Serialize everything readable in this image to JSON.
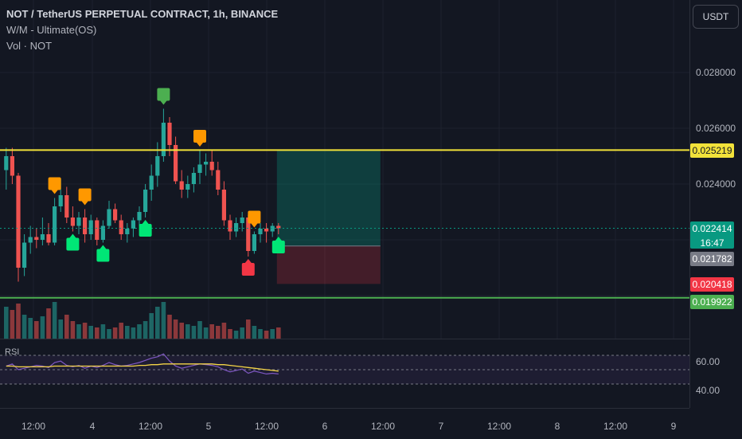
{
  "legend": {
    "symbol": "NOT / TetherUS PERPETUAL CONTRACT, 1h, BINANCE",
    "indicator1": "W/M - Ultimate(OS)",
    "indicator2": "Vol · NOT"
  },
  "currency": "USDT",
  "price_axis": [
    "0.028000",
    "0.026000",
    "0.024000"
  ],
  "price_tags": {
    "resistance": "0.025219",
    "current": "0.022414",
    "countdown": "16:47",
    "gray": "0.021782",
    "stop": "0.020418",
    "support": "0.019922"
  },
  "rsi": {
    "label": "RSI",
    "ticks": [
      "60.00",
      "40.00"
    ]
  },
  "time_axis": [
    "12:00",
    "4",
    "12:00",
    "5",
    "12:00",
    "6",
    "12:00",
    "7",
    "12:00",
    "8",
    "12:00",
    "9"
  ],
  "colors": {
    "up": "#26a69a",
    "down": "#ef5350",
    "resistance": "#f2e23a",
    "support": "#4caf50",
    "signal_orange": "#ff9800",
    "signal_green": "#00e676",
    "signal_red": "#f23645",
    "rsi": "#7e57c2"
  },
  "chart_data": {
    "type": "candlestick",
    "timeframe": "1h",
    "ylim": [
      0.0196,
      0.0288
    ],
    "horizontal_lines": [
      0.025219,
      0.019922
    ],
    "position": {
      "entry": 0.02178,
      "target": 0.025219,
      "stop": 0.020418
    },
    "candles": [
      [
        0.0245,
        0.0253,
        0.0238,
        0.025
      ],
      [
        0.025,
        0.0253,
        0.024,
        0.0243
      ],
      [
        0.0243,
        0.0244,
        0.0205,
        0.021
      ],
      [
        0.021,
        0.0222,
        0.0207,
        0.0219
      ],
      [
        0.0219,
        0.0225,
        0.0215,
        0.0221
      ],
      [
        0.0221,
        0.0224,
        0.0217,
        0.022
      ],
      [
        0.022,
        0.0228,
        0.0218,
        0.0222
      ],
      [
        0.0222,
        0.0226,
        0.0218,
        0.0219
      ],
      [
        0.0219,
        0.0235,
        0.0218,
        0.0232
      ],
      [
        0.0232,
        0.0242,
        0.023,
        0.0236
      ],
      [
        0.0236,
        0.0239,
        0.0226,
        0.0228
      ],
      [
        0.0228,
        0.0232,
        0.0223,
        0.0225
      ],
      [
        0.0225,
        0.023,
        0.0222,
        0.0228
      ],
      [
        0.0228,
        0.0231,
        0.0219,
        0.0222
      ],
      [
        0.0222,
        0.0229,
        0.022,
        0.0227
      ],
      [
        0.0227,
        0.0228,
        0.0218,
        0.022
      ],
      [
        0.022,
        0.0227,
        0.0219,
        0.0225
      ],
      [
        0.0225,
        0.0234,
        0.0224,
        0.0231
      ],
      [
        0.0231,
        0.0233,
        0.0226,
        0.0227
      ],
      [
        0.0227,
        0.0229,
        0.022,
        0.0222
      ],
      [
        0.0222,
        0.0226,
        0.0219,
        0.0224
      ],
      [
        0.0224,
        0.0228,
        0.0221,
        0.0227
      ],
      [
        0.0227,
        0.0232,
        0.0225,
        0.023
      ],
      [
        0.023,
        0.024,
        0.0228,
        0.0238
      ],
      [
        0.0238,
        0.0247,
        0.0234,
        0.0243
      ],
      [
        0.0243,
        0.0255,
        0.0239,
        0.025
      ],
      [
        0.025,
        0.0267,
        0.0248,
        0.0262
      ],
      [
        0.0262,
        0.0264,
        0.025,
        0.0254
      ],
      [
        0.0254,
        0.0257,
        0.024,
        0.0241
      ],
      [
        0.0241,
        0.0245,
        0.0235,
        0.0238
      ],
      [
        0.0238,
        0.0243,
        0.0235,
        0.024
      ],
      [
        0.024,
        0.0246,
        0.0237,
        0.0244
      ],
      [
        0.0244,
        0.0252,
        0.024,
        0.0247
      ],
      [
        0.0247,
        0.0251,
        0.0243,
        0.0248
      ],
      [
        0.0248,
        0.0252,
        0.0243,
        0.0245
      ],
      [
        0.0245,
        0.0248,
        0.0236,
        0.0238
      ],
      [
        0.0238,
        0.0241,
        0.0225,
        0.0227
      ],
      [
        0.0227,
        0.0229,
        0.022,
        0.0223
      ],
      [
        0.0223,
        0.0228,
        0.0221,
        0.0226
      ],
      [
        0.0226,
        0.023,
        0.0223,
        0.0228
      ],
      [
        0.0228,
        0.0229,
        0.0214,
        0.0216
      ],
      [
        0.0216,
        0.0223,
        0.0215,
        0.0222
      ],
      [
        0.0222,
        0.0226,
        0.0219,
        0.0224
      ],
      [
        0.0224,
        0.0226,
        0.0219,
        0.0223
      ],
      [
        0.0223,
        0.0226,
        0.0221,
        0.0225
      ],
      [
        0.0225,
        0.0226,
        0.0222,
        0.02241
      ]
    ],
    "volume": [
      40,
      36,
      44,
      30,
      26,
      22,
      28,
      38,
      46,
      24,
      30,
      22,
      18,
      20,
      16,
      14,
      18,
      12,
      14,
      20,
      16,
      14,
      18,
      22,
      32,
      40,
      46,
      30,
      24,
      20,
      18,
      16,
      22,
      14,
      18,
      16,
      20,
      12,
      10,
      14,
      24,
      16,
      12,
      10,
      12,
      14
    ],
    "rsi_values": [
      55,
      58,
      50,
      52,
      54,
      56,
      55,
      53,
      60,
      62,
      56,
      54,
      56,
      52,
      55,
      53,
      56,
      60,
      57,
      55,
      56,
      58,
      60,
      63,
      66,
      68,
      72,
      62,
      55,
      52,
      54,
      56,
      58,
      57,
      56,
      54,
      50,
      47,
      49,
      51,
      45,
      48,
      46,
      44,
      45,
      44
    ],
    "rsi_ma": [
      55,
      55,
      54,
      54,
      54,
      54,
      54,
      54,
      55,
      55,
      55,
      55,
      55,
      55,
      55,
      55,
      55,
      55,
      55,
      55,
      55,
      55,
      56,
      56,
      57,
      57,
      58,
      58,
      58,
      58,
      58,
      58,
      58,
      58,
      58,
      57,
      57,
      56,
      55,
      54,
      53,
      52,
      51,
      50,
      49,
      48
    ],
    "signals": [
      {
        "i": 8,
        "kind": "orange"
      },
      {
        "i": 13,
        "kind": "orange"
      },
      {
        "i": 11,
        "kind": "green"
      },
      {
        "i": 16,
        "kind": "green"
      },
      {
        "i": 23,
        "kind": "green"
      },
      {
        "i": 26,
        "kind": "top"
      },
      {
        "i": 32,
        "kind": "orange"
      },
      {
        "i": 40,
        "kind": "red"
      },
      {
        "i": 41,
        "kind": "orange"
      },
      {
        "i": 45,
        "kind": "green"
      }
    ]
  }
}
